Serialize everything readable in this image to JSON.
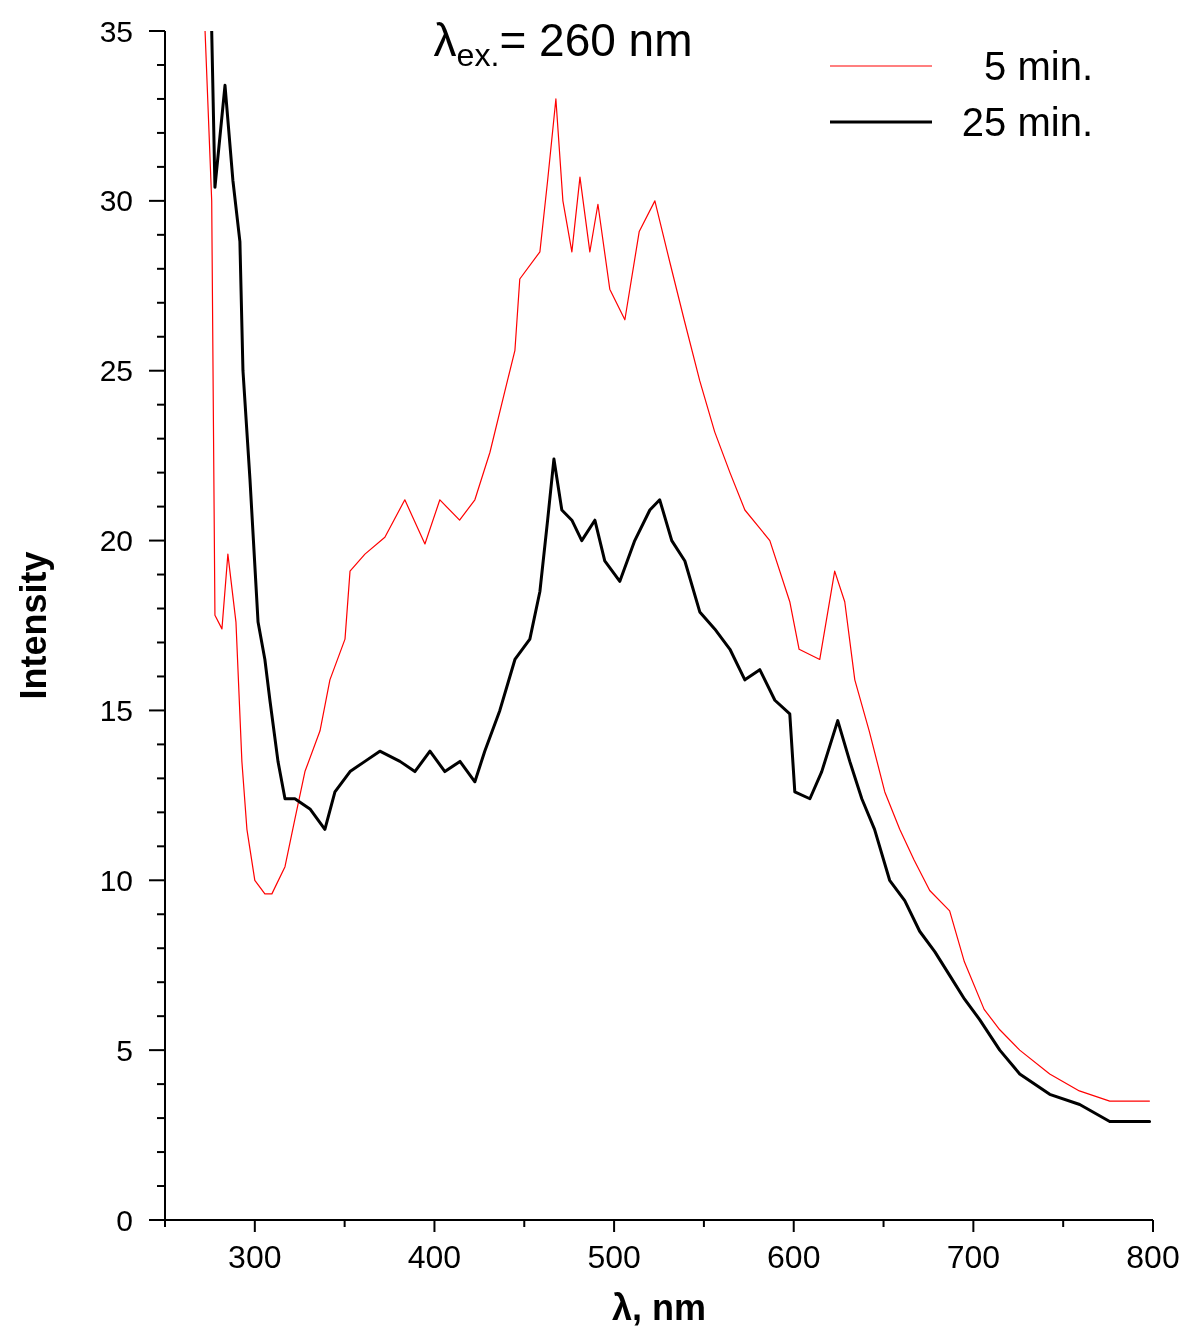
{
  "chart_data": {
    "type": "line",
    "title": "λ$_{ex.}$= 260 nm",
    "xlabel": "λ, nm",
    "ylabel": "Intensity",
    "xlim": [
      250,
      800
    ],
    "ylim": [
      0,
      35
    ],
    "xticks": [
      {
        "value": 250,
        "label": null
      },
      300,
      {
        "value": 350,
        "label": null
      },
      400,
      {
        "value": 450,
        "label": null
      },
      500,
      {
        "value": 550,
        "label": null
      },
      600,
      {
        "value": 650,
        "label": null
      },
      700,
      {
        "value": 750,
        "label": null
      },
      800
    ],
    "yticks": [
      0,
      {
        "value": 1,
        "label": null
      },
      {
        "value": 2,
        "label": null
      },
      {
        "value": 3,
        "label": null
      },
      {
        "value": 4,
        "label": null
      },
      5,
      {
        "value": 6,
        "label": null
      },
      {
        "value": 7,
        "label": null
      },
      {
        "value": 8,
        "label": null
      },
      {
        "value": 9,
        "label": null
      },
      10,
      {
        "value": 11,
        "label": null
      },
      {
        "value": 12,
        "label": null
      },
      {
        "value": 13,
        "label": null
      },
      {
        "value": 14,
        "label": null
      },
      15,
      {
        "value": 16,
        "label": null
      },
      {
        "value": 17,
        "label": null
      },
      {
        "value": 18,
        "label": null
      },
      {
        "value": 19,
        "label": null
      },
      20,
      {
        "value": 21,
        "label": null
      },
      {
        "value": 22,
        "label": null
      },
      {
        "value": 23,
        "label": null
      },
      {
        "value": 24,
        "label": null
      },
      25,
      {
        "value": 26,
        "label": null
      },
      {
        "value": 27,
        "label": null
      },
      {
        "value": 28,
        "label": null
      },
      {
        "value": 29,
        "label": null
      },
      30,
      {
        "value": 31,
        "label": null
      },
      {
        "value": 32,
        "label": null
      },
      {
        "value": 33,
        "label": null
      },
      {
        "value": 34,
        "label": null
      },
      35
    ],
    "grid": false,
    "legend": "top right",
    "marker": "none",
    "line_style": "solid",
    "series": [
      {
        "name": "5 min.",
        "color": "#ff0000",
        "x": [
          272.3,
          276,
          277.8,
          281.7,
          285,
          289.5,
          292.8,
          295.6,
          300,
          305.6,
          309.5,
          316.8,
          322.3,
          327.9,
          336.3,
          341.8,
          350.2,
          353,
          361.3,
          372.4,
          383.5,
          394.7,
          403,
          414,
          422.5,
          430.9,
          439.2,
          444.8,
          447.5,
          458.7,
          463,
          467.6,
          471.5,
          476.5,
          481,
          486.5,
          491,
          497.6,
          506,
          514,
          522.7,
          531,
          539,
          547.7,
          556,
          564.5,
          572.8,
          586.7,
          597.8,
          603,
          614.5,
          622.8,
          628.4,
          634,
          642,
          650.7,
          659,
          667,
          675.7,
          686.8,
          695,
          706,
          714.7,
          725.8,
          742.5,
          759,
          775.9,
          798
        ],
        "values": [
          35,
          30,
          17.8,
          17.4,
          19.6,
          17.6,
          13.5,
          11.5,
          10,
          9.6,
          9.6,
          10.4,
          11.8,
          13.2,
          14.4,
          15.9,
          17.1,
          19.1,
          19.6,
          20.1,
          21.2,
          19.9,
          21.2,
          20.6,
          21.2,
          22.6,
          24.4,
          25.6,
          27.7,
          28.5,
          30.6,
          33,
          30,
          28.5,
          30.7,
          28.5,
          29.9,
          27.4,
          26.5,
          29.1,
          30,
          28.2,
          26.5,
          24.7,
          23.2,
          22,
          20.9,
          20,
          18.2,
          16.8,
          16.5,
          19.1,
          18.2,
          15.9,
          14.4,
          12.6,
          11.5,
          10.6,
          9.7,
          9.1,
          7.6,
          6.2,
          5.6,
          5,
          4.3,
          3.8,
          3.5,
          3.5
        ]
      },
      {
        "name": "25 min.",
        "color": "#000000",
        "x": [
          276,
          277.8,
          283.4,
          287.8,
          291.7,
          293.4,
          297.3,
          301.8,
          305.6,
          308.4,
          312.9,
          316.8,
          322.3,
          330.7,
          339,
          344.6,
          353,
          361.3,
          369.6,
          380.8,
          389.1,
          397.5,
          405.8,
          414.2,
          422.5,
          428,
          436.4,
          444.8,
          453.1,
          458.7,
          463,
          466.5,
          470.9,
          476.5,
          482,
          489.3,
          494.8,
          503.2,
          511.5,
          519.9,
          525.4,
          532.1,
          539.4,
          547.7,
          556,
          564.5,
          572.8,
          581.1,
          589.5,
          597.8,
          600.6,
          609,
          615.6,
          624.5,
          631.2,
          637.9,
          645,
          653.4,
          661.8,
          670.1,
          678.5,
          686.8,
          695.1,
          703.5,
          714.7,
          725.8,
          742.5,
          759.2,
          775.9,
          798.1
        ],
        "values": [
          35,
          30.4,
          33.4,
          30.6,
          28.8,
          25,
          21.8,
          17.6,
          16.5,
          15.3,
          13.5,
          12.4,
          12.4,
          12.1,
          11.5,
          12.6,
          13.2,
          13.5,
          13.8,
          13.5,
          13.2,
          13.8,
          13.2,
          13.5,
          12.9,
          13.8,
          15,
          16.5,
          17.1,
          18.5,
          20.6,
          22.4,
          20.9,
          20.6,
          20,
          20.6,
          19.4,
          18.8,
          20,
          20.9,
          21.2,
          20,
          19.4,
          17.9,
          17.4,
          16.8,
          15.9,
          16.2,
          15.3,
          14.9,
          12.6,
          12.4,
          13.2,
          14.7,
          13.5,
          12.4,
          11.5,
          10,
          9.4,
          8.5,
          7.9,
          7.2,
          6.5,
          5.9,
          5,
          4.3,
          3.7,
          3.4,
          2.9,
          2.9
        ]
      }
    ]
  }
}
